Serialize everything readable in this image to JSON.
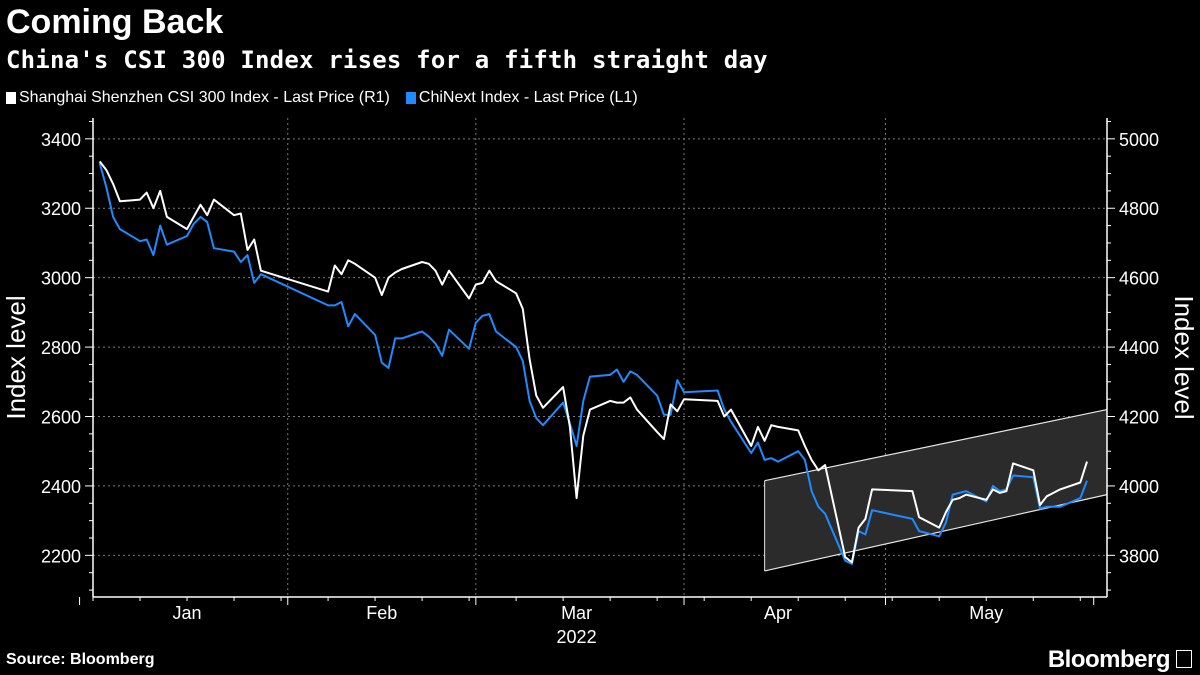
{
  "header": {
    "title": "Coming Back",
    "subtitle": "China's CSI 300 Index rises for a fifth straight day"
  },
  "footer": {
    "source": "Source: Bloomberg",
    "brand": "Bloomberg"
  },
  "chart_data": {
    "type": "line",
    "year_label": "2022",
    "x_tick_labels": [
      "Jan",
      "Feb",
      "Mar",
      "Apr",
      "May"
    ],
    "left_axis": {
      "label": "Index level",
      "ticks": [
        2200,
        2400,
        2600,
        2800,
        3000,
        3200,
        3400
      ],
      "range": [
        2080,
        3460
      ]
    },
    "right_axis": {
      "label": "Index level",
      "ticks": [
        3800,
        4000,
        4200,
        4400,
        4600,
        4800,
        5000
      ],
      "range": [
        3680,
        5060
      ]
    },
    "grid": true,
    "legend_position": "top-left",
    "highlight_channel": {
      "start": [
        "2022-04-13",
        "2022-05-26"
      ],
      "lower_right_axis": [
        3755,
        3975
      ],
      "upper_right_axis": [
        4015,
        4220
      ]
    },
    "series": [
      {
        "name": "Shanghai Shenzhen CSI 300 Index - Last Price (R1)",
        "axis": "right",
        "color": "#ffffff",
        "points": [
          [
            "2022-01-04",
            4935
          ],
          [
            "2022-01-05",
            4910
          ],
          [
            "2022-01-06",
            4870
          ],
          [
            "2022-01-07",
            4820
          ],
          [
            "2022-01-10",
            4825
          ],
          [
            "2022-01-11",
            4845
          ],
          [
            "2022-01-12",
            4800
          ],
          [
            "2022-01-13",
            4850
          ],
          [
            "2022-01-14",
            4775
          ],
          [
            "2022-01-17",
            4740
          ],
          [
            "2022-01-18",
            4775
          ],
          [
            "2022-01-19",
            4810
          ],
          [
            "2022-01-20",
            4780
          ],
          [
            "2022-01-21",
            4825
          ],
          [
            "2022-01-24",
            4780
          ],
          [
            "2022-01-25",
            4785
          ],
          [
            "2022-01-26",
            4680
          ],
          [
            "2022-01-27",
            4710
          ],
          [
            "2022-01-28",
            4620
          ],
          [
            "2022-02-07",
            4560
          ],
          [
            "2022-02-08",
            4635
          ],
          [
            "2022-02-09",
            4610
          ],
          [
            "2022-02-10",
            4650
          ],
          [
            "2022-02-11",
            4640
          ],
          [
            "2022-02-14",
            4600
          ],
          [
            "2022-02-15",
            4550
          ],
          [
            "2022-02-16",
            4600
          ],
          [
            "2022-02-17",
            4615
          ],
          [
            "2022-02-18",
            4625
          ],
          [
            "2022-02-21",
            4645
          ],
          [
            "2022-02-22",
            4640
          ],
          [
            "2022-02-23",
            4620
          ],
          [
            "2022-02-24",
            4580
          ],
          [
            "2022-02-25",
            4620
          ],
          [
            "2022-02-28",
            4540
          ],
          [
            "2022-03-01",
            4580
          ],
          [
            "2022-03-02",
            4585
          ],
          [
            "2022-03-03",
            4620
          ],
          [
            "2022-03-04",
            4590
          ],
          [
            "2022-03-07",
            4555
          ],
          [
            "2022-03-08",
            4510
          ],
          [
            "2022-03-09",
            4365
          ],
          [
            "2022-03-10",
            4260
          ],
          [
            "2022-03-11",
            4225
          ],
          [
            "2022-03-14",
            4285
          ],
          [
            "2022-03-15",
            4170
          ],
          [
            "2022-03-16",
            3965
          ],
          [
            "2022-03-17",
            4145
          ],
          [
            "2022-03-18",
            4220
          ],
          [
            "2022-03-21",
            4245
          ],
          [
            "2022-03-22",
            4240
          ],
          [
            "2022-03-23",
            4240
          ],
          [
            "2022-03-24",
            4255
          ],
          [
            "2022-03-25",
            4220
          ],
          [
            "2022-03-28",
            4155
          ],
          [
            "2022-03-29",
            4135
          ],
          [
            "2022-03-30",
            4235
          ],
          [
            "2022-03-31",
            4215
          ],
          [
            "2022-04-01",
            4250
          ],
          [
            "2022-04-06",
            4245
          ],
          [
            "2022-04-07",
            4200
          ],
          [
            "2022-04-08",
            4220
          ],
          [
            "2022-04-11",
            4115
          ],
          [
            "2022-04-12",
            4170
          ],
          [
            "2022-04-13",
            4130
          ],
          [
            "2022-04-14",
            4175
          ],
          [
            "2022-04-15",
            4170
          ],
          [
            "2022-04-18",
            4160
          ],
          [
            "2022-04-19",
            4115
          ],
          [
            "2022-04-20",
            4075
          ],
          [
            "2022-04-21",
            4045
          ],
          [
            "2022-04-22",
            4060
          ],
          [
            "2022-04-25",
            3795
          ],
          [
            "2022-04-26",
            3780
          ],
          [
            "2022-04-27",
            3880
          ],
          [
            "2022-04-28",
            3905
          ],
          [
            "2022-04-29",
            3990
          ],
          [
            "2022-05-05",
            3985
          ],
          [
            "2022-05-06",
            3910
          ],
          [
            "2022-05-09",
            3880
          ],
          [
            "2022-05-10",
            3925
          ],
          [
            "2022-05-11",
            3960
          ],
          [
            "2022-05-12",
            3965
          ],
          [
            "2022-05-13",
            3975
          ],
          [
            "2022-05-16",
            3960
          ],
          [
            "2022-05-17",
            3990
          ],
          [
            "2022-05-18",
            3980
          ],
          [
            "2022-05-19",
            3985
          ],
          [
            "2022-05-20",
            4065
          ],
          [
            "2022-05-23",
            4045
          ],
          [
            "2022-05-24",
            3945
          ],
          [
            "2022-05-25",
            3970
          ],
          [
            "2022-05-26",
            3980
          ],
          [
            "2022-05-27",
            3990
          ],
          [
            "2022-05-30",
            4010
          ],
          [
            "2022-05-31",
            4070
          ]
        ]
      },
      {
        "name": "ChiNext Index - Last Price (L1)",
        "axis": "left",
        "color": "#1e8bff",
        "points": [
          [
            "2022-01-04",
            3330
          ],
          [
            "2022-01-05",
            3260
          ],
          [
            "2022-01-06",
            3175
          ],
          [
            "2022-01-07",
            3140
          ],
          [
            "2022-01-10",
            3105
          ],
          [
            "2022-01-11",
            3110
          ],
          [
            "2022-01-12",
            3065
          ],
          [
            "2022-01-13",
            3150
          ],
          [
            "2022-01-14",
            3095
          ],
          [
            "2022-01-17",
            3120
          ],
          [
            "2022-01-18",
            3155
          ],
          [
            "2022-01-19",
            3175
          ],
          [
            "2022-01-20",
            3160
          ],
          [
            "2022-01-21",
            3085
          ],
          [
            "2022-01-24",
            3075
          ],
          [
            "2022-01-25",
            3045
          ],
          [
            "2022-01-26",
            3065
          ],
          [
            "2022-01-27",
            2985
          ],
          [
            "2022-01-28",
            3010
          ],
          [
            "2022-02-07",
            2920
          ],
          [
            "2022-02-08",
            2920
          ],
          [
            "2022-02-09",
            2930
          ],
          [
            "2022-02-10",
            2860
          ],
          [
            "2022-02-11",
            2895
          ],
          [
            "2022-02-14",
            2835
          ],
          [
            "2022-02-15",
            2755
          ],
          [
            "2022-02-16",
            2740
          ],
          [
            "2022-02-17",
            2825
          ],
          [
            "2022-02-18",
            2825
          ],
          [
            "2022-02-21",
            2845
          ],
          [
            "2022-02-22",
            2830
          ],
          [
            "2022-02-23",
            2810
          ],
          [
            "2022-02-24",
            2775
          ],
          [
            "2022-02-25",
            2850
          ],
          [
            "2022-02-28",
            2795
          ],
          [
            "2022-03-01",
            2870
          ],
          [
            "2022-03-02",
            2890
          ],
          [
            "2022-03-03",
            2895
          ],
          [
            "2022-03-04",
            2845
          ],
          [
            "2022-03-07",
            2800
          ],
          [
            "2022-03-08",
            2760
          ],
          [
            "2022-03-09",
            2645
          ],
          [
            "2022-03-10",
            2595
          ],
          [
            "2022-03-11",
            2575
          ],
          [
            "2022-03-14",
            2640
          ],
          [
            "2022-03-15",
            2580
          ],
          [
            "2022-03-16",
            2515
          ],
          [
            "2022-03-17",
            2645
          ],
          [
            "2022-03-18",
            2715
          ],
          [
            "2022-03-21",
            2720
          ],
          [
            "2022-03-22",
            2735
          ],
          [
            "2022-03-23",
            2700
          ],
          [
            "2022-03-24",
            2730
          ],
          [
            "2022-03-25",
            2720
          ],
          [
            "2022-03-28",
            2660
          ],
          [
            "2022-03-29",
            2605
          ],
          [
            "2022-03-30",
            2605
          ],
          [
            "2022-03-31",
            2705
          ],
          [
            "2022-04-01",
            2670
          ],
          [
            "2022-04-06",
            2675
          ],
          [
            "2022-04-07",
            2620
          ],
          [
            "2022-04-08",
            2585
          ],
          [
            "2022-04-11",
            2495
          ],
          [
            "2022-04-12",
            2525
          ],
          [
            "2022-04-13",
            2475
          ],
          [
            "2022-04-14",
            2480
          ],
          [
            "2022-04-15",
            2470
          ],
          [
            "2022-04-18",
            2500
          ],
          [
            "2022-04-19",
            2475
          ],
          [
            "2022-04-20",
            2385
          ],
          [
            "2022-04-21",
            2340
          ],
          [
            "2022-04-22",
            2320
          ],
          [
            "2022-04-25",
            2185
          ],
          [
            "2022-04-26",
            2175
          ],
          [
            "2022-04-27",
            2270
          ],
          [
            "2022-04-28",
            2260
          ],
          [
            "2022-04-29",
            2330
          ],
          [
            "2022-05-05",
            2305
          ],
          [
            "2022-05-06",
            2270
          ],
          [
            "2022-05-09",
            2255
          ],
          [
            "2022-05-10",
            2295
          ],
          [
            "2022-05-11",
            2375
          ],
          [
            "2022-05-12",
            2380
          ],
          [
            "2022-05-13",
            2385
          ],
          [
            "2022-05-16",
            2355
          ],
          [
            "2022-05-17",
            2400
          ],
          [
            "2022-05-18",
            2385
          ],
          [
            "2022-05-19",
            2390
          ],
          [
            "2022-05-20",
            2430
          ],
          [
            "2022-05-23",
            2425
          ],
          [
            "2022-05-24",
            2335
          ],
          [
            "2022-05-25",
            2340
          ],
          [
            "2022-05-26",
            2340
          ],
          [
            "2022-05-27",
            2340
          ],
          [
            "2022-05-30",
            2365
          ],
          [
            "2022-05-31",
            2415
          ]
        ]
      }
    ]
  }
}
